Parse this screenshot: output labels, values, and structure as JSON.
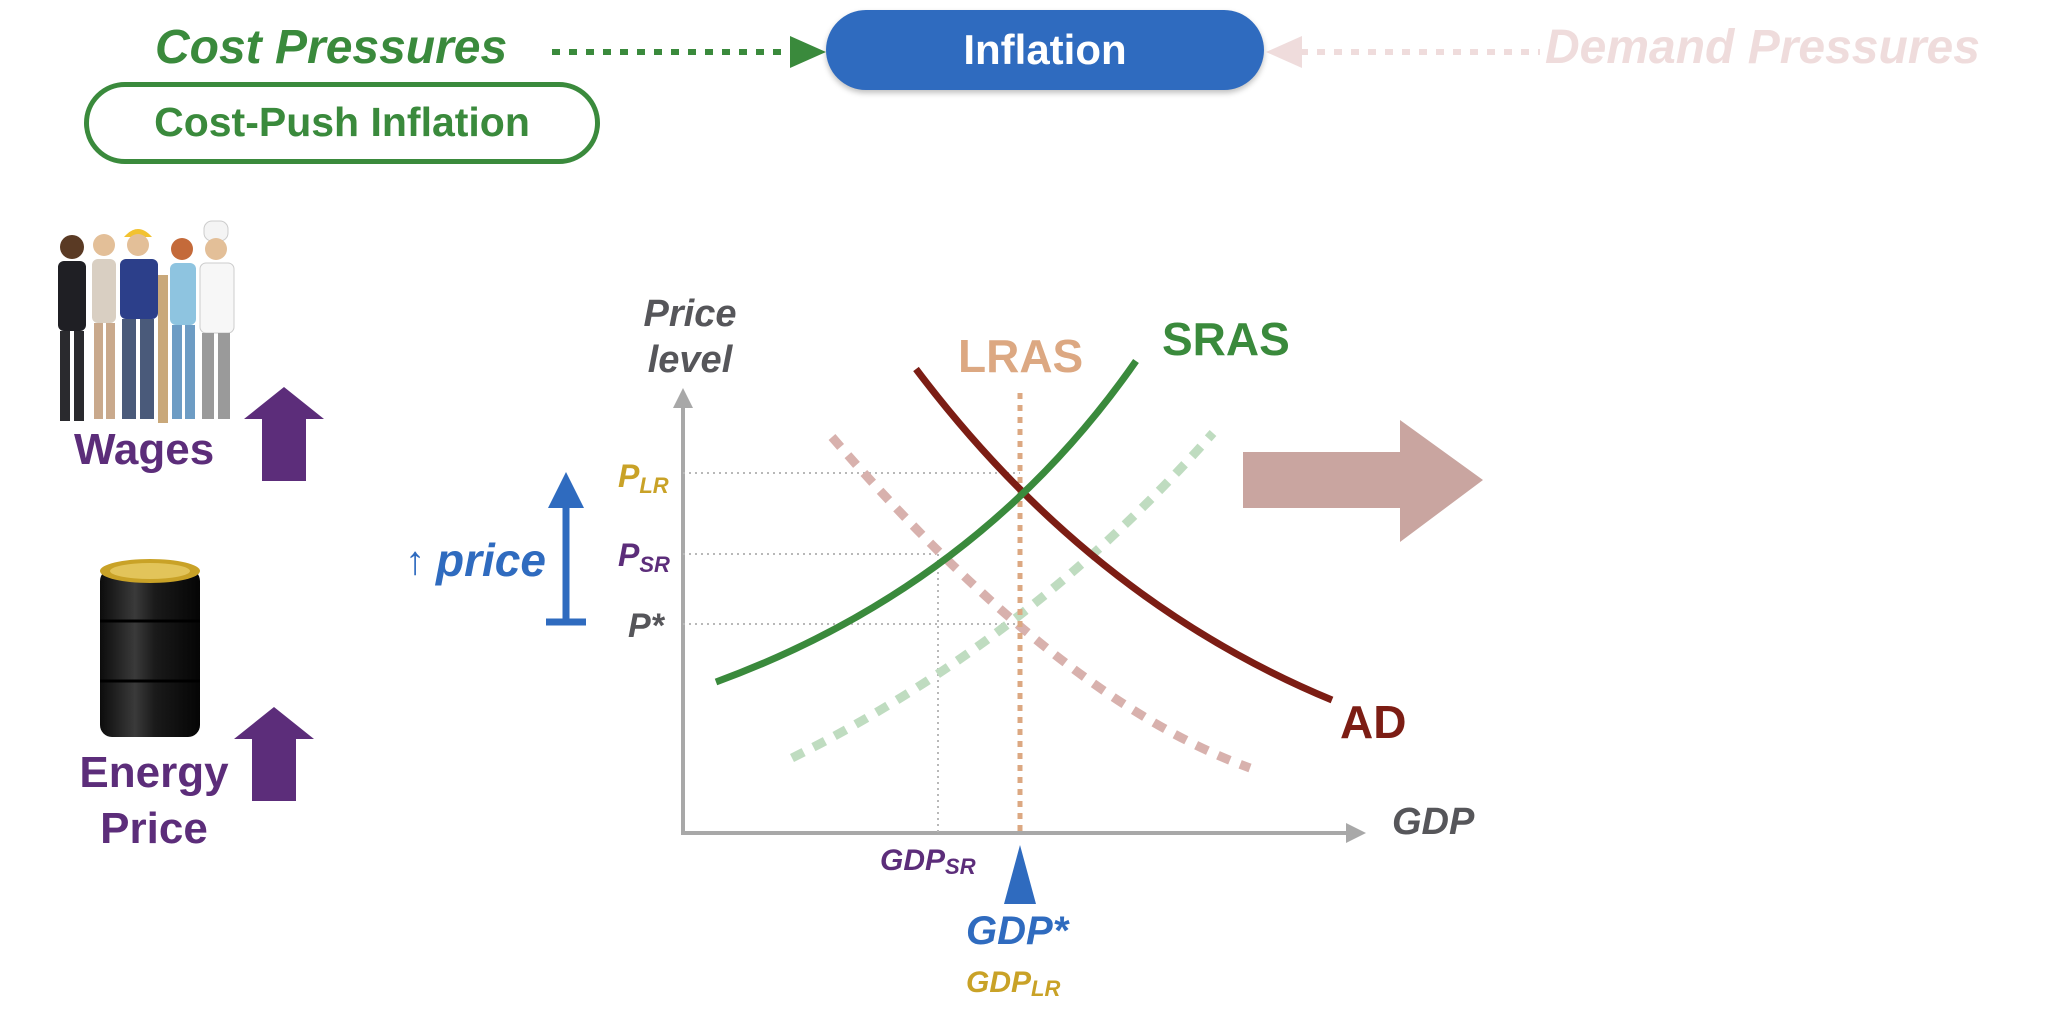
{
  "header": {
    "cost_pressures": "Cost Pressures",
    "inflation": "Inflation",
    "demand_pressures": "Demand Pressures",
    "cost_push_inflation": "Cost-Push Inflation"
  },
  "drivers": {
    "wages": "Wages",
    "energy_price_line1": "Energy",
    "energy_price_line2": "Price"
  },
  "chart": {
    "y_axis_label_line1": "Price",
    "y_axis_label_line2": "level",
    "x_axis_label": "GDP",
    "price_change_label": "price",
    "price_labels": {
      "p_lr_main": "P",
      "p_lr_sub": "LR",
      "p_sr_main": "P",
      "p_sr_sub": "SR",
      "p_star": "P*"
    },
    "gdp_labels": {
      "gdp_sr_main": "GDP",
      "gdp_sr_sub": "SR",
      "gdp_star": "GDP*",
      "gdp_lr_main": "GDP",
      "gdp_lr_sub": "LR"
    },
    "curve_labels": {
      "lras": "LRAS",
      "sras": "SRAS",
      "ad": "AD"
    }
  },
  "colors": {
    "green": "#3a8a3c",
    "blue": "#2f6bbf",
    "purple": "#5c2d7a",
    "dark_red": "#7c1d14",
    "lras": "#dca882",
    "gold": "#c9a227",
    "faded_red": "#c9a5a0",
    "faded_pink": "#efdcdc"
  }
}
